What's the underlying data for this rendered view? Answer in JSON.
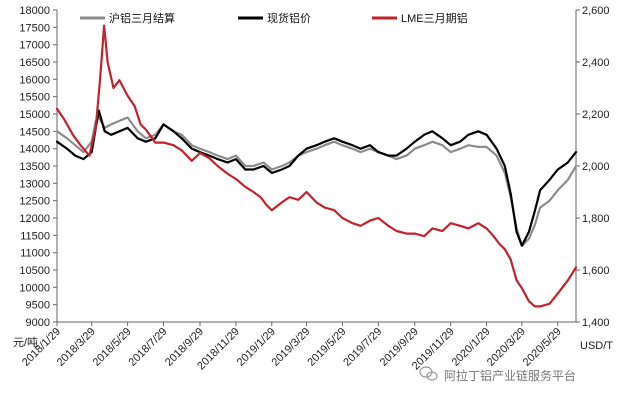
{
  "chart_data": {
    "type": "line",
    "title": "",
    "xlabel": "",
    "ylabel_left": "元/吨",
    "ylabel_right": "USD/T",
    "ylim_left": [
      9000,
      18000
    ],
    "ylim_right": [
      1400,
      2600
    ],
    "left_ticks": [
      9000,
      9500,
      10000,
      10500,
      11000,
      11500,
      12000,
      12500,
      13000,
      13500,
      14000,
      14500,
      15000,
      15500,
      16000,
      16500,
      17000,
      17500,
      18000
    ],
    "right_ticks": [
      "1,400",
      "1,600",
      "1,800",
      "2,000",
      "2,200",
      "2,400",
      "2,600"
    ],
    "right_tick_values": [
      1400,
      1600,
      1800,
      2000,
      2200,
      2400,
      2600
    ],
    "x_ticks": [
      "2018/1/29",
      "2018/3/29",
      "2018/5/29",
      "2018/7/29",
      "2018/9/29",
      "2018/11/29",
      "2019/1/29",
      "2019/3/29",
      "2019/5/29",
      "2019/7/29",
      "2019/9/29",
      "2019/11/29",
      "2020/1/29",
      "2020/3/29",
      "2020/5/29"
    ],
    "x_range": [
      "2018/1/29",
      "2020/6/29"
    ],
    "grid": false,
    "legend_position": "top",
    "series": [
      {
        "name": "沪铝三月结算",
        "axis": "left",
        "color": "#8c8c8c",
        "x": [
          "2018/1/29",
          "2018/2/15",
          "2018/3/1",
          "2018/3/15",
          "2018/3/29",
          "2018/4/5",
          "2018/4/10",
          "2018/4/20",
          "2018/5/1",
          "2018/5/15",
          "2018/5/29",
          "2018/6/15",
          "2018/6/29",
          "2018/7/15",
          "2018/7/29",
          "2018/8/15",
          "2018/8/29",
          "2018/9/15",
          "2018/9/29",
          "2018/10/15",
          "2018/10/29",
          "2018/11/15",
          "2018/11/29",
          "2018/12/15",
          "2018/12/29",
          "2019/1/15",
          "2019/1/29",
          "2019/2/15",
          "2019/2/28",
          "2019/3/15",
          "2019/3/29",
          "2019/4/15",
          "2019/4/29",
          "2019/5/15",
          "2019/5/29",
          "2019/6/15",
          "2019/6/29",
          "2019/7/15",
          "2019/7/29",
          "2019/8/15",
          "2019/8/29",
          "2019/9/15",
          "2019/9/29",
          "2019/10/15",
          "2019/10/29",
          "2019/11/15",
          "2019/11/29",
          "2019/12/15",
          "2019/12/29",
          "2020/1/15",
          "2020/1/29",
          "2020/2/15",
          "2020/2/29",
          "2020/3/10",
          "2020/3/20",
          "2020/3/29",
          "2020/4/10",
          "2020/4/20",
          "2020/4/29",
          "2020/5/15",
          "2020/5/29",
          "2020/6/15",
          "2020/6/29"
        ],
        "values": [
          14500,
          14300,
          14100,
          13900,
          14200,
          14800,
          14900,
          14600,
          14700,
          14800,
          14900,
          14500,
          14300,
          14400,
          14700,
          14500,
          14400,
          14100,
          14000,
          13900,
          13800,
          13700,
          13800,
          13500,
          13500,
          13600,
          13400,
          13500,
          13600,
          13800,
          13900,
          14000,
          14100,
          14200,
          14100,
          14000,
          13900,
          14000,
          13900,
          13800,
          13700,
          13800,
          14000,
          14100,
          14200,
          14100,
          13900,
          14000,
          14100,
          14050,
          14050,
          13800,
          13300,
          12600,
          11700,
          11200,
          11400,
          11800,
          12300,
          12500,
          12800,
          13100,
          13500
        ]
      },
      {
        "name": "现货铝价",
        "axis": "left",
        "color": "#000000",
        "x": [
          "2018/1/29",
          "2018/2/15",
          "2018/3/1",
          "2018/3/15",
          "2018/3/29",
          "2018/4/5",
          "2018/4/10",
          "2018/4/20",
          "2018/5/1",
          "2018/5/15",
          "2018/5/29",
          "2018/6/15",
          "2018/6/29",
          "2018/7/15",
          "2018/7/29",
          "2018/8/15",
          "2018/8/29",
          "2018/9/15",
          "2018/9/29",
          "2018/10/15",
          "2018/10/29",
          "2018/11/15",
          "2018/11/29",
          "2018/12/15",
          "2018/12/29",
          "2019/1/15",
          "2019/1/29",
          "2019/2/15",
          "2019/2/28",
          "2019/3/15",
          "2019/3/29",
          "2019/4/15",
          "2019/4/29",
          "2019/5/15",
          "2019/5/29",
          "2019/6/15",
          "2019/6/29",
          "2019/7/15",
          "2019/7/29",
          "2019/8/15",
          "2019/8/29",
          "2019/9/15",
          "2019/9/29",
          "2019/10/15",
          "2019/10/29",
          "2019/11/15",
          "2019/11/29",
          "2019/12/15",
          "2019/12/29",
          "2020/1/15",
          "2020/1/29",
          "2020/2/15",
          "2020/2/29",
          "2020/3/10",
          "2020/3/20",
          "2020/3/29",
          "2020/4/10",
          "2020/4/20",
          "2020/4/29",
          "2020/5/15",
          "2020/5/29",
          "2020/6/15",
          "2020/6/29"
        ],
        "values": [
          14200,
          14000,
          13800,
          13700,
          13900,
          14600,
          15100,
          14500,
          14400,
          14500,
          14600,
          14300,
          14200,
          14300,
          14700,
          14500,
          14300,
          14000,
          13900,
          13800,
          13700,
          13600,
          13700,
          13400,
          13400,
          13500,
          13300,
          13400,
          13500,
          13800,
          14000,
          14100,
          14200,
          14300,
          14200,
          14100,
          14000,
          14100,
          13900,
          13800,
          13800,
          14000,
          14200,
          14400,
          14500,
          14300,
          14100,
          14200,
          14400,
          14500,
          14400,
          14000,
          13500,
          12700,
          11600,
          11200,
          11600,
          12200,
          12800,
          13100,
          13400,
          13600,
          13900
        ]
      },
      {
        "name": "LME三月期铝",
        "axis": "right",
        "color": "#c0222e",
        "x": [
          "2018/1/29",
          "2018/2/10",
          "2018/2/25",
          "2018/3/10",
          "2018/3/25",
          "2018/4/5",
          "2018/4/12",
          "2018/4/19",
          "2018/4/25",
          "2018/5/5",
          "2018/5/15",
          "2018/5/29",
          "2018/6/10",
          "2018/6/20",
          "2018/6/29",
          "2018/7/15",
          "2018/7/29",
          "2018/8/15",
          "2018/8/29",
          "2018/9/15",
          "2018/9/29",
          "2018/10/15",
          "2018/10/29",
          "2018/11/15",
          "2018/11/29",
          "2018/12/15",
          "2018/12/29",
          "2019/1/10",
          "2019/1/20",
          "2019/1/29",
          "2019/2/15",
          "2019/2/28",
          "2019/3/15",
          "2019/3/29",
          "2019/4/15",
          "2019/4/29",
          "2019/5/15",
          "2019/5/29",
          "2019/6/15",
          "2019/6/29",
          "2019/7/15",
          "2019/7/29",
          "2019/8/15",
          "2019/8/29",
          "2019/9/15",
          "2019/9/29",
          "2019/10/15",
          "2019/10/29",
          "2019/11/15",
          "2019/11/29",
          "2019/12/15",
          "2019/12/29",
          "2020/1/15",
          "2020/1/29",
          "2020/2/10",
          "2020/2/20",
          "2020/2/29",
          "2020/3/10",
          "2020/3/20",
          "2020/3/29",
          "2020/4/10",
          "2020/4/20",
          "2020/4/29",
          "2020/5/15",
          "2020/5/29",
          "2020/6/15",
          "2020/6/29"
        ],
        "values": [
          2220,
          2180,
          2120,
          2080,
          2040,
          2150,
          2330,
          2540,
          2400,
          2300,
          2330,
          2270,
          2230,
          2160,
          2140,
          2090,
          2090,
          2080,
          2060,
          2020,
          2050,
          2030,
          2000,
          1970,
          1950,
          1920,
          1900,
          1880,
          1850,
          1830,
          1860,
          1880,
          1870,
          1900,
          1860,
          1840,
          1830,
          1800,
          1780,
          1770,
          1790,
          1800,
          1770,
          1750,
          1740,
          1740,
          1730,
          1760,
          1750,
          1780,
          1770,
          1760,
          1780,
          1760,
          1730,
          1700,
          1680,
          1640,
          1560,
          1530,
          1480,
          1460,
          1460,
          1470,
          1510,
          1560,
          1610
        ]
      }
    ]
  },
  "watermark": {
    "text": "阿拉丁铝产业链服务平台"
  }
}
